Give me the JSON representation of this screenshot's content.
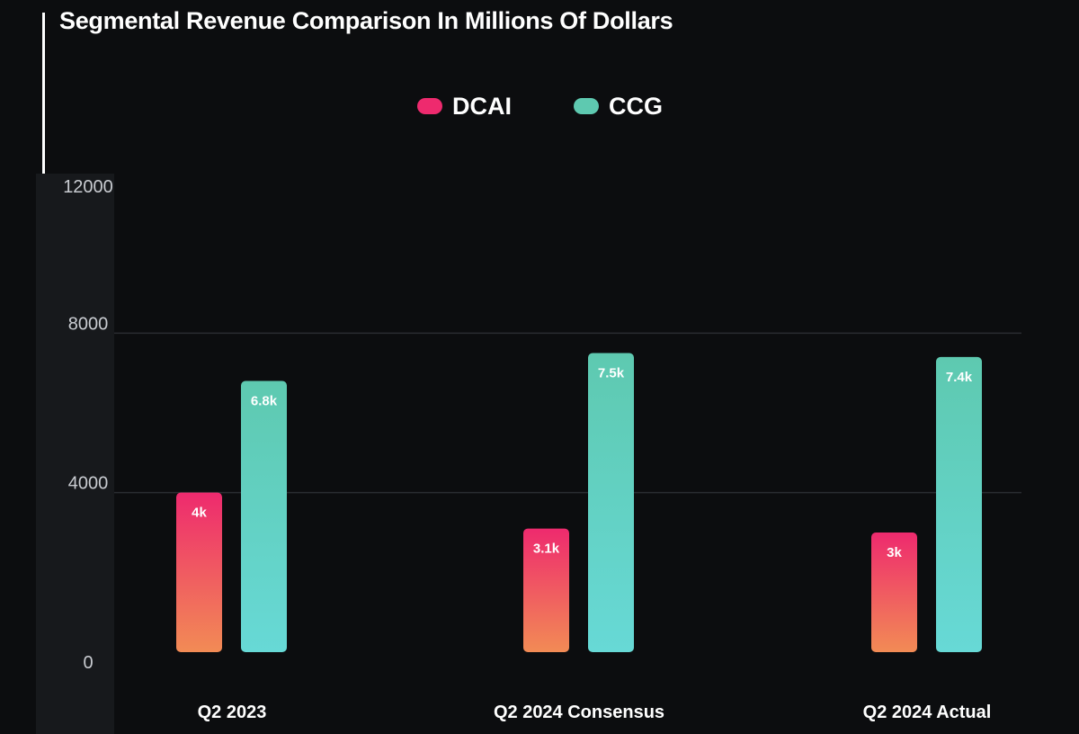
{
  "chart_data": {
    "type": "bar",
    "title": "Segmental Revenue Comparison In Millions Of Dollars",
    "categories": [
      "Q2 2023",
      "Q2 2024 Consensus",
      "Q2 2024 Actual"
    ],
    "series": [
      {
        "name": "DCAI",
        "values": [
          4000,
          3100,
          3000
        ],
        "labels": [
          "4k",
          "3.1k",
          "3k"
        ],
        "color_top": "#ee2a6e",
        "color_bottom": "#f28b55"
      },
      {
        "name": "CCG",
        "values": [
          6800,
          7500,
          7400
        ],
        "labels": [
          "6.8k",
          "7.5k",
          "7.4k"
        ],
        "color_top": "#5ec9b0",
        "color_bottom": "#67d9d6"
      }
    ],
    "yticks": [
      "0",
      "4000",
      "8000",
      "12000"
    ],
    "ylim": [
      0,
      12000
    ],
    "xlabel": "",
    "ylabel": "",
    "legend_position": "top-center",
    "grid": true
  }
}
